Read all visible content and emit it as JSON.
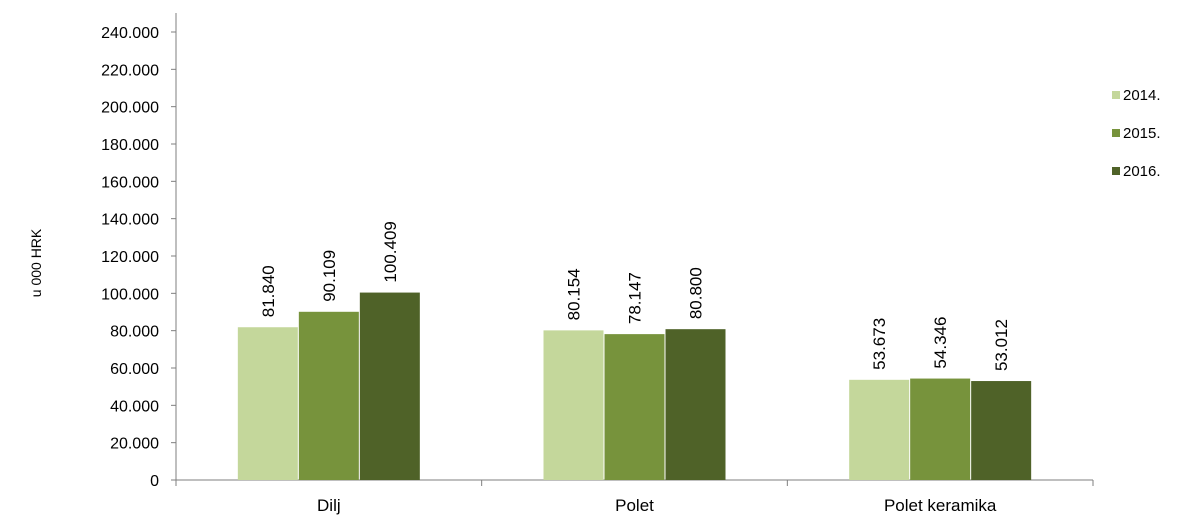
{
  "chart_data": {
    "type": "bar",
    "ylabel": "u 000 HRK",
    "categories": [
      "Dilj",
      "Polet",
      "Polet keramika"
    ],
    "series": [
      {
        "name": "2014.",
        "color": "#c4d79b",
        "values": [
          81840,
          80154,
          53673
        ],
        "labels": [
          "81.840",
          "80.154",
          "53.673"
        ]
      },
      {
        "name": "2015.",
        "color": "#77933c",
        "values": [
          90109,
          78147,
          54346
        ],
        "labels": [
          "90.109",
          "78.147",
          "54.346"
        ]
      },
      {
        "name": "2016.",
        "color": "#4f6228",
        "values": [
          100409,
          80800,
          53012
        ],
        "labels": [
          "100.409",
          "80.800",
          "53.012"
        ]
      }
    ],
    "ylim": [
      0,
      240000
    ],
    "yticks": [
      0,
      20000,
      40000,
      60000,
      80000,
      100000,
      120000,
      140000,
      160000,
      180000,
      200000,
      220000,
      240000
    ],
    "ytick_labels": [
      "0",
      "20.000",
      "40.000",
      "60.000",
      "80.000",
      "100.000",
      "120.000",
      "140.000",
      "160.000",
      "180.000",
      "200.000",
      "220.000",
      "240.000"
    ],
    "grid": false,
    "legend_position": "right"
  }
}
